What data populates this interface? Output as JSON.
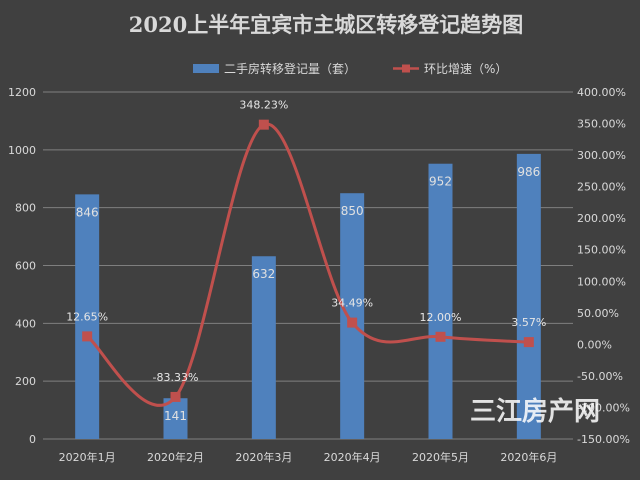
{
  "chart_data": {
    "type": "bar",
    "title": "2020上半年宜宾市主城区转移登记趋势图",
    "categories": [
      "2020年1月",
      "2020年2月",
      "2020年3月",
      "2020年4月",
      "2020年5月",
      "2020年6月"
    ],
    "series": [
      {
        "name": "二手房转移登记量（套）",
        "type": "bar",
        "axis": "left",
        "values": [
          846,
          141,
          632,
          850,
          952,
          986
        ],
        "labels": [
          "846",
          "141",
          "632",
          "850",
          "952",
          "986"
        ],
        "color": "#4f81bd"
      },
      {
        "name": "环比增速（%）",
        "type": "line",
        "axis": "right",
        "values": [
          12.65,
          -83.33,
          348.23,
          34.49,
          12.0,
          3.57
        ],
        "labels": [
          "12.65%",
          "-83.33%",
          "348.23%",
          "34.49%",
          "12.00%",
          "3.57%"
        ],
        "color": "#c0504d"
      }
    ],
    "y_left": {
      "min": 0,
      "max": 1200,
      "ticks": [
        "0",
        "200",
        "400",
        "600",
        "800",
        "1000",
        "1200"
      ]
    },
    "y_right": {
      "min": -150,
      "max": 400,
      "ticks": [
        "-150.00%",
        "-100.00%",
        "-50.00%",
        "0.00%",
        "50.00%",
        "100.00%",
        "150.00%",
        "200.00%",
        "250.00%",
        "300.00%",
        "350.00%",
        "400.00%"
      ]
    },
    "legend": "top",
    "grid": true
  },
  "watermark": "三江房产网",
  "colors": {
    "background": "#404040",
    "grid": "#7f7f7f",
    "text": "#d9d9d9"
  }
}
